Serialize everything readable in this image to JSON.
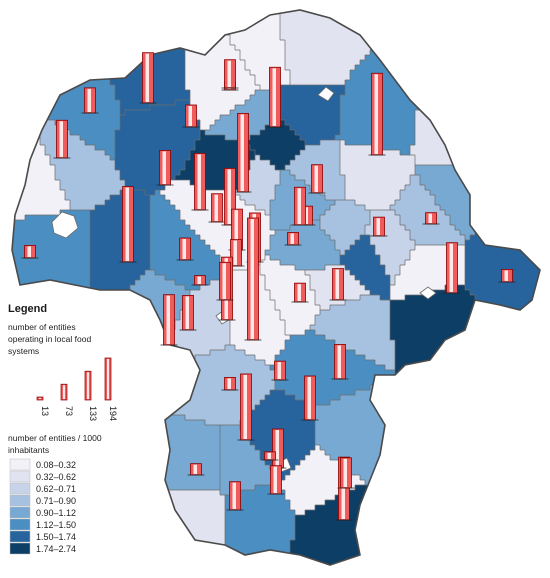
{
  "legend": {
    "title": "Legend",
    "bars_caption": "number of entities operating in local food systems",
    "bar_sizes": [
      "13",
      "73",
      "133",
      "194"
    ],
    "choropleth_caption": "number of entities / 1000 inhabitants",
    "classes": [
      {
        "range": "0.08–0.32",
        "color": "#f3f1f8"
      },
      {
        "range": "0.32–0.62",
        "color": "#e2e3f0"
      },
      {
        "range": "0.62–0.71",
        "color": "#c6d3e8"
      },
      {
        "range": "0.71–0.90",
        "color": "#a7c1e0"
      },
      {
        "range": "0.90–1.12",
        "color": "#77a9d2"
      },
      {
        "range": "1.12–1.50",
        "color": "#4b8ec2"
      },
      {
        "range": "1.50–1.74",
        "color": "#27649e"
      },
      {
        "range": "1.74–2.74",
        "color": "#0c3e66"
      }
    ]
  },
  "colors": {
    "bar_fill": "#f05c5c",
    "bar_stroke": "#8a0000",
    "boundary": "#6c6c6c"
  },
  "chart_data": {
    "type": "choropleth-with-bars",
    "regions": [
      {
        "cls": 5,
        "bar": 120
      },
      {
        "cls": 5,
        "bar": 40
      },
      {
        "cls": 3,
        "bar": 60
      },
      {
        "cls": 0,
        "bar": 20
      },
      {
        "cls": 6,
        "bar": 80
      },
      {
        "cls": 6,
        "bar": 55
      },
      {
        "cls": 0,
        "bar": 13
      },
      {
        "cls": 7,
        "bar": 125
      },
      {
        "cls": 0,
        "bar": 45
      },
      {
        "cls": 7,
        "bar": 130
      },
      {
        "cls": 4,
        "bar": 95
      },
      {
        "cls": 2,
        "bar": 35
      },
      {
        "cls": 4,
        "bar": 30
      },
      {
        "cls": 0,
        "bar": 60
      },
      {
        "cls": 1,
        "bar": 90
      },
      {
        "cls": 6,
        "bar": 78
      },
      {
        "cls": 3,
        "bar": 50
      },
      {
        "cls": 3,
        "bar": 30
      },
      {
        "cls": 4,
        "bar": 18
      },
      {
        "cls": 5,
        "bar": 80
      },
      {
        "cls": 1,
        "bar": 20
      },
      {
        "cls": 3,
        "bar": 45
      },
      {
        "cls": 4,
        "bar": 90
      },
      {
        "cls": 1,
        "bar": 65
      },
      {
        "cls": 2,
        "bar": 20
      },
      {
        "cls": 0,
        "bar": 80
      },
      {
        "cls": 6,
        "bar": 55
      },
      {
        "cls": 7,
        "bar": 194
      },
      {
        "cls": 1,
        "bar": 30
      },
      {
        "cls": 0,
        "bar": 55
      },
      {
        "cls": 6,
        "bar": 20
      },
      {
        "cls": 3,
        "bar": 62
      },
      {
        "cls": 5,
        "bar": 70
      },
      {
        "cls": 0,
        "bar": 18
      },
      {
        "cls": 2,
        "bar": 45
      },
      {
        "cls": 4,
        "bar": 100
      },
      {
        "cls": 6,
        "bar": 48
      },
      {
        "cls": 5,
        "bar": 105
      },
      {
        "cls": 3,
        "bar": 45
      },
      {
        "cls": 4,
        "bar": 15
      },
      {
        "cls": 6,
        "bar": 42
      },
      {
        "cls": 4,
        "bar": 100
      },
      {
        "cls": 1,
        "bar": 35
      },
      {
        "cls": 5,
        "bar": 60
      },
      {
        "cls": 7,
        "bar": 45
      },
      {
        "cls": 0,
        "bar": 13
      },
      {
        "cls": 4,
        "bar": 30
      }
    ]
  }
}
